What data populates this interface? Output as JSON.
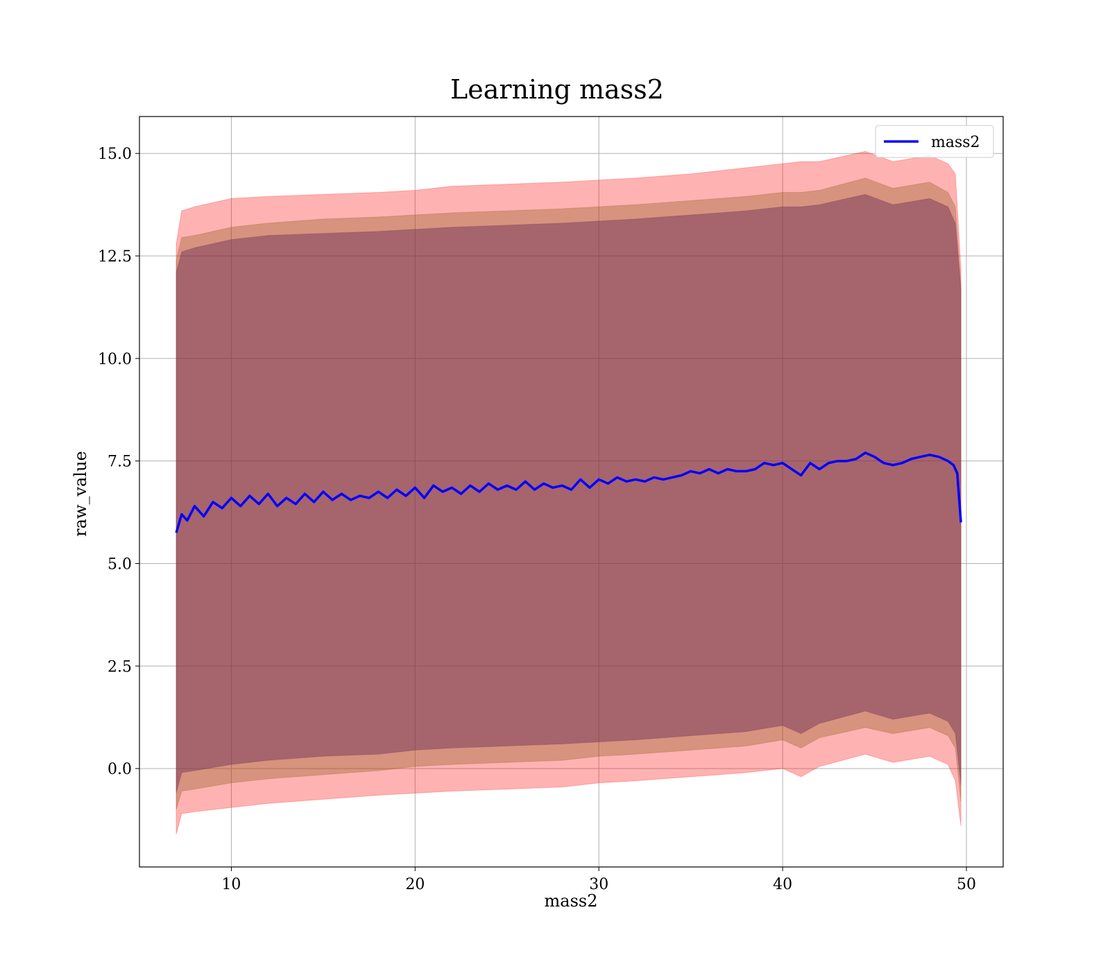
{
  "chart_data": {
    "type": "line",
    "title": "Learning mass2",
    "xlabel": "mass2",
    "ylabel": "raw_value",
    "xlim": [
      5,
      52
    ],
    "ylim": [
      -2.4,
      15.9
    ],
    "xticks": [
      10,
      20,
      30,
      40,
      50
    ],
    "xtick_labels": [
      "10",
      "20",
      "30",
      "40",
      "50"
    ],
    "yticks": [
      0.0,
      2.5,
      5.0,
      7.5,
      10.0,
      12.5,
      15.0
    ],
    "ytick_labels": [
      "0.0",
      "2.5",
      "5.0",
      "7.5",
      "10.0",
      "12.5",
      "15.0"
    ],
    "grid": true,
    "legend": {
      "position": "top-right",
      "entries": [
        "mass2"
      ]
    },
    "series": [
      {
        "name": "mass2",
        "color": "#0000ff",
        "x": [
          7.0,
          7.3,
          7.6,
          8.0,
          8.5,
          9.0,
          9.5,
          10.0,
          10.5,
          11.0,
          11.5,
          12.0,
          12.5,
          13.0,
          13.5,
          14.0,
          14.5,
          15.0,
          15.5,
          16.0,
          16.5,
          17.0,
          17.5,
          18.0,
          18.5,
          19.0,
          19.5,
          20.0,
          20.5,
          21.0,
          21.5,
          22.0,
          22.5,
          23.0,
          23.5,
          24.0,
          24.5,
          25.0,
          25.5,
          26.0,
          26.5,
          27.0,
          27.5,
          28.0,
          28.5,
          29.0,
          29.5,
          30.0,
          30.5,
          31.0,
          31.5,
          32.0,
          32.5,
          33.0,
          33.5,
          34.0,
          34.5,
          35.0,
          35.5,
          36.0,
          36.5,
          37.0,
          37.5,
          38.0,
          38.5,
          39.0,
          39.5,
          40.0,
          40.5,
          41.0,
          41.5,
          42.0,
          42.5,
          43.0,
          43.5,
          44.0,
          44.5,
          45.0,
          45.5,
          46.0,
          46.5,
          47.0,
          47.5,
          48.0,
          48.5,
          49.0,
          49.3,
          49.5,
          49.7
        ],
        "y": [
          5.75,
          6.2,
          6.05,
          6.4,
          6.15,
          6.5,
          6.35,
          6.6,
          6.4,
          6.65,
          6.45,
          6.7,
          6.4,
          6.6,
          6.45,
          6.7,
          6.5,
          6.75,
          6.55,
          6.7,
          6.55,
          6.65,
          6.6,
          6.75,
          6.6,
          6.8,
          6.65,
          6.85,
          6.6,
          6.9,
          6.75,
          6.85,
          6.7,
          6.9,
          6.75,
          6.95,
          6.8,
          6.9,
          6.8,
          7.0,
          6.8,
          6.95,
          6.85,
          6.9,
          6.8,
          7.05,
          6.85,
          7.05,
          6.95,
          7.1,
          7.0,
          7.05,
          7.0,
          7.1,
          7.05,
          7.1,
          7.15,
          7.25,
          7.2,
          7.3,
          7.2,
          7.3,
          7.25,
          7.25,
          7.3,
          7.45,
          7.4,
          7.45,
          7.3,
          7.15,
          7.45,
          7.3,
          7.45,
          7.5,
          7.5,
          7.55,
          7.7,
          7.6,
          7.45,
          7.4,
          7.45,
          7.55,
          7.6,
          7.65,
          7.6,
          7.5,
          7.4,
          7.2,
          6.0
        ]
      },
      {
        "name": "",
        "kind": "band",
        "color": "#ff0000",
        "opacity": 0.3,
        "x": [
          7.0,
          7.3,
          8.0,
          10.0,
          12.0,
          15.0,
          18.0,
          20.0,
          22.0,
          25.0,
          28.0,
          30.0,
          32.0,
          35.0,
          38.0,
          40.0,
          41.0,
          42.0,
          44.5,
          46.0,
          48.0,
          49.0,
          49.4,
          49.7
        ],
        "upper": [
          12.8,
          13.6,
          13.7,
          13.9,
          13.95,
          14.0,
          14.05,
          14.1,
          14.2,
          14.25,
          14.3,
          14.35,
          14.4,
          14.5,
          14.65,
          14.75,
          14.8,
          14.8,
          15.05,
          14.8,
          14.95,
          14.75,
          14.5,
          12.2
        ],
        "lower": [
          -1.6,
          -1.1,
          -1.05,
          -0.95,
          -0.85,
          -0.75,
          -0.65,
          -0.6,
          -0.55,
          -0.5,
          -0.45,
          -0.35,
          -0.3,
          -0.2,
          -0.1,
          0.0,
          -0.2,
          0.05,
          0.35,
          0.15,
          0.3,
          0.1,
          -0.3,
          -1.4
        ]
      },
      {
        "name": "",
        "kind": "band",
        "color": "#8b5a1a",
        "opacity": 0.35,
        "x": [
          7.0,
          7.3,
          8.0,
          10.0,
          12.0,
          15.0,
          18.0,
          20.0,
          22.0,
          25.0,
          28.0,
          30.0,
          32.0,
          35.0,
          38.0,
          40.0,
          41.0,
          42.0,
          44.5,
          46.0,
          48.0,
          49.0,
          49.4,
          49.7
        ],
        "upper": [
          12.4,
          12.95,
          13.0,
          13.2,
          13.3,
          13.4,
          13.45,
          13.5,
          13.55,
          13.6,
          13.65,
          13.7,
          13.75,
          13.85,
          13.95,
          14.05,
          14.05,
          14.1,
          14.4,
          14.15,
          14.3,
          14.05,
          13.7,
          11.8
        ],
        "lower": [
          -1.0,
          -0.55,
          -0.5,
          -0.35,
          -0.25,
          -0.15,
          -0.05,
          0.05,
          0.1,
          0.15,
          0.2,
          0.3,
          0.35,
          0.45,
          0.55,
          0.7,
          0.5,
          0.75,
          1.0,
          0.85,
          1.0,
          0.8,
          0.5,
          -0.8
        ]
      },
      {
        "name": "",
        "kind": "band",
        "color": "#6a2c5a",
        "opacity": 0.45,
        "x": [
          7.0,
          7.3,
          8.0,
          10.0,
          12.0,
          15.0,
          18.0,
          20.0,
          22.0,
          25.0,
          28.0,
          30.0,
          32.0,
          35.0,
          38.0,
          40.0,
          41.0,
          42.0,
          44.5,
          46.0,
          48.0,
          49.0,
          49.4,
          49.7
        ],
        "upper": [
          12.1,
          12.6,
          12.7,
          12.9,
          13.0,
          13.05,
          13.1,
          13.15,
          13.2,
          13.25,
          13.3,
          13.35,
          13.4,
          13.5,
          13.6,
          13.7,
          13.7,
          13.75,
          14.0,
          13.75,
          13.9,
          13.7,
          13.3,
          11.7
        ],
        "lower": [
          -0.6,
          -0.1,
          -0.05,
          0.1,
          0.2,
          0.3,
          0.35,
          0.45,
          0.5,
          0.55,
          0.6,
          0.65,
          0.7,
          0.8,
          0.9,
          1.05,
          0.85,
          1.1,
          1.4,
          1.2,
          1.35,
          1.15,
          0.85,
          -0.4
        ]
      }
    ]
  }
}
